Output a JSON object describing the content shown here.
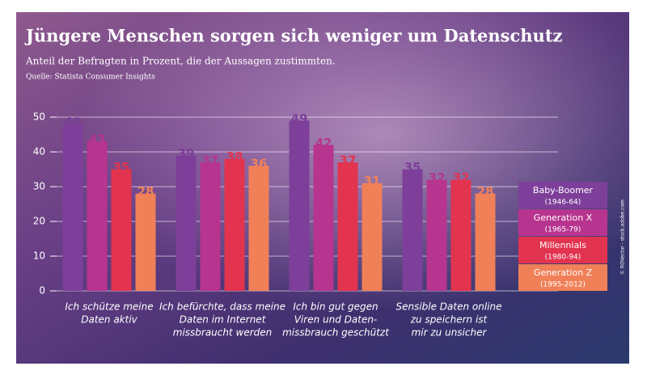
{
  "chart_data": {
    "type": "bar",
    "title": "Jüngere Menschen sorgen sich weniger um Datenschutz",
    "subtitle": "Anteil der Befragten in Prozent, die der Aussagen zustimmten.",
    "source": "Quelle: Statista Consumer Insights",
    "credit": "© RDVector - stock.adobe.com",
    "categories": [
      [
        "Ich schütze meine",
        "Daten aktiv"
      ],
      [
        "Ich befürchte, dass meine",
        "Daten im Internet",
        "missbraucht werden"
      ],
      [
        "Ich bin gut gegen",
        "Viren und Daten-",
        "missbrauch geschützt"
      ],
      [
        "Sensible Daten online",
        "zu speichern ist",
        "mir zu unsicher"
      ]
    ],
    "series": [
      {
        "name": "Baby-Boomer",
        "years": "(1946-64)",
        "color": "#7d3f99",
        "values": [
          48,
          39,
          49,
          35
        ]
      },
      {
        "name": "Generation X",
        "years": "(1965-79)",
        "color": "#b7348f",
        "values": [
          43,
          37,
          42,
          32
        ]
      },
      {
        "name": "Millennials",
        "years": "(1980-94)",
        "color": "#e2344f",
        "values": [
          35,
          38,
          37,
          32
        ]
      },
      {
        "name": "Generation Z",
        "years": "(1995-2012)",
        "color": "#f08058",
        "values": [
          28,
          36,
          31,
          28
        ]
      }
    ],
    "ylim": [
      0,
      50
    ],
    "yticks": [
      0,
      10,
      20,
      30,
      40,
      50
    ],
    "grid": true
  }
}
